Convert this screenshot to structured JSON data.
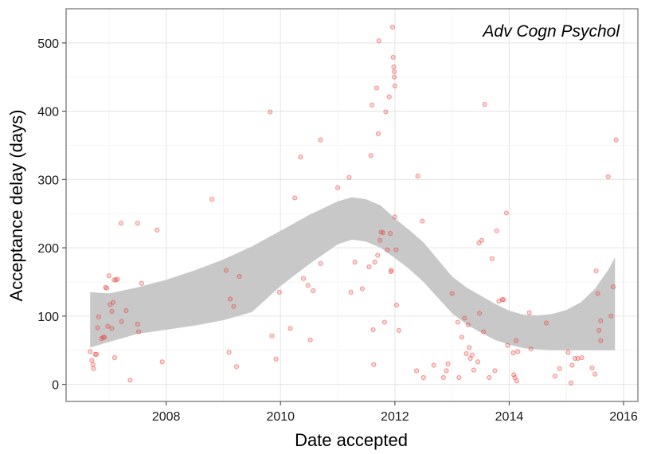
{
  "chart_data": {
    "type": "scatter",
    "title": "",
    "annotation": "Adv Cogn Psychol",
    "xlabel": "Date accepted",
    "ylabel": "Acceptance delay (days)",
    "xlim": [
      2006.25,
      2016.25
    ],
    "ylim": [
      -25,
      550
    ],
    "x_ticks": [
      2008,
      2010,
      2012,
      2014,
      2016
    ],
    "y_ticks": [
      0,
      100,
      200,
      300,
      400,
      500
    ],
    "colors": {
      "point": "#e8413a",
      "band": "#c8c8c8",
      "grid_major": "#e8e8e8",
      "grid_minor": "#f4f4f4",
      "frame": "#8a8a8a"
    },
    "points": [
      [
        2006.67,
        48
      ],
      [
        2006.7,
        35
      ],
      [
        2006.72,
        29
      ],
      [
        2006.73,
        23
      ],
      [
        2006.76,
        44
      ],
      [
        2006.78,
        44
      ],
      [
        2006.8,
        83
      ],
      [
        2006.82,
        99
      ],
      [
        2006.87,
        67
      ],
      [
        2006.9,
        69
      ],
      [
        2006.92,
        69
      ],
      [
        2006.94,
        142
      ],
      [
        2006.96,
        141
      ],
      [
        2006.98,
        85
      ],
      [
        2007.0,
        159
      ],
      [
        2007.02,
        117
      ],
      [
        2007.05,
        107
      ],
      [
        2007.05,
        82
      ],
      [
        2007.07,
        120
      ],
      [
        2007.09,
        153
      ],
      [
        2007.12,
        153
      ],
      [
        2007.1,
        39
      ],
      [
        2007.15,
        154
      ],
      [
        2007.21,
        236
      ],
      [
        2007.22,
        92
      ],
      [
        2007.3,
        108
      ],
      [
        2007.37,
        6
      ],
      [
        2007.5,
        236
      ],
      [
        2007.5,
        88
      ],
      [
        2007.52,
        77
      ],
      [
        2007.57,
        148
      ],
      [
        2007.84,
        226
      ],
      [
        2007.93,
        33
      ],
      [
        2008.8,
        271
      ],
      [
        2009.05,
        167
      ],
      [
        2009.1,
        47
      ],
      [
        2009.12,
        125
      ],
      [
        2009.18,
        114
      ],
      [
        2009.23,
        26
      ],
      [
        2009.28,
        158
      ],
      [
        2009.82,
        399
      ],
      [
        2009.85,
        71
      ],
      [
        2009.92,
        37
      ],
      [
        2009.98,
        135
      ],
      [
        2010.17,
        82
      ],
      [
        2010.25,
        273
      ],
      [
        2010.35,
        333
      ],
      [
        2010.4,
        155
      ],
      [
        2010.48,
        145
      ],
      [
        2010.52,
        65
      ],
      [
        2010.57,
        137
      ],
      [
        2010.7,
        177
      ],
      [
        2010.7,
        358
      ],
      [
        2011.0,
        288
      ],
      [
        2011.2,
        303
      ],
      [
        2011.23,
        135
      ],
      [
        2011.3,
        179
      ],
      [
        2011.43,
        140
      ],
      [
        2011.55,
        172
      ],
      [
        2011.58,
        335
      ],
      [
        2011.6,
        409
      ],
      [
        2011.62,
        80
      ],
      [
        2011.63,
        29
      ],
      [
        2011.65,
        179
      ],
      [
        2011.68,
        434
      ],
      [
        2011.7,
        189
      ],
      [
        2011.71,
        367
      ],
      [
        2011.72,
        503
      ],
      [
        2011.74,
        211
      ],
      [
        2011.76,
        223
      ],
      [
        2011.79,
        222
      ],
      [
        2011.82,
        91
      ],
      [
        2011.84,
        399
      ],
      [
        2011.87,
        197
      ],
      [
        2011.9,
        421
      ],
      [
        2011.92,
        221
      ],
      [
        2011.93,
        165
      ],
      [
        2011.94,
        167
      ],
      [
        2011.96,
        523
      ],
      [
        2011.97,
        479
      ],
      [
        2011.98,
        465
      ],
      [
        2011.99,
        458
      ],
      [
        2011.99,
        450
      ],
      [
        2012.0,
        437
      ],
      [
        2012.0,
        245
      ],
      [
        2012.02,
        197
      ],
      [
        2012.03,
        116
      ],
      [
        2012.07,
        79
      ],
      [
        2012.38,
        20
      ],
      [
        2012.4,
        305
      ],
      [
        2012.48,
        239
      ],
      [
        2012.5,
        10
      ],
      [
        2012.68,
        28
      ],
      [
        2012.85,
        10
      ],
      [
        2012.9,
        20
      ],
      [
        2012.93,
        30
      ],
      [
        2013.0,
        133
      ],
      [
        2013.1,
        91
      ],
      [
        2013.12,
        10
      ],
      [
        2013.17,
        69
      ],
      [
        2013.22,
        97
      ],
      [
        2013.25,
        45
      ],
      [
        2013.28,
        87
      ],
      [
        2013.3,
        54
      ],
      [
        2013.32,
        38
      ],
      [
        2013.35,
        43
      ],
      [
        2013.38,
        21
      ],
      [
        2013.45,
        33
      ],
      [
        2013.47,
        207
      ],
      [
        2013.48,
        104
      ],
      [
        2013.52,
        211
      ],
      [
        2013.55,
        77
      ],
      [
        2013.57,
        410
      ],
      [
        2013.65,
        10
      ],
      [
        2013.7,
        184
      ],
      [
        2013.75,
        20
      ],
      [
        2013.78,
        225
      ],
      [
        2013.82,
        122
      ],
      [
        2013.88,
        124
      ],
      [
        2013.9,
        124
      ],
      [
        2013.95,
        251
      ],
      [
        2013.97,
        57
      ],
      [
        2014.07,
        46
      ],
      [
        2014.08,
        14
      ],
      [
        2014.1,
        10
      ],
      [
        2014.12,
        64
      ],
      [
        2014.13,
        5
      ],
      [
        2014.15,
        48
      ],
      [
        2014.35,
        105
      ],
      [
        2014.38,
        52
      ],
      [
        2014.65,
        90
      ],
      [
        2014.8,
        12
      ],
      [
        2014.88,
        23
      ],
      [
        2015.03,
        47
      ],
      [
        2015.08,
        2
      ],
      [
        2015.1,
        28
      ],
      [
        2015.15,
        38
      ],
      [
        2015.2,
        38
      ],
      [
        2015.27,
        39
      ],
      [
        2015.45,
        24
      ],
      [
        2015.5,
        15
      ],
      [
        2015.52,
        166
      ],
      [
        2015.55,
        133
      ],
      [
        2015.57,
        79
      ],
      [
        2015.6,
        64
      ],
      [
        2015.6,
        93
      ],
      [
        2015.73,
        304
      ],
      [
        2015.78,
        100
      ],
      [
        2015.82,
        143
      ],
      [
        2015.87,
        358
      ]
    ],
    "smooth_band": {
      "x": [
        2006.67,
        2007,
        2007.5,
        2008,
        2008.5,
        2009,
        2009.5,
        2010,
        2010.5,
        2011,
        2011.25,
        2011.5,
        2011.75,
        2012,
        2012.25,
        2012.5,
        2012.75,
        2013,
        2013.25,
        2013.5,
        2013.75,
        2014,
        2014.25,
        2014.5,
        2014.75,
        2015,
        2015.25,
        2015.5,
        2015.75,
        2015.85
      ],
      "upper": [
        135,
        133,
        142,
        153,
        167,
        183,
        202,
        225,
        248,
        268,
        274,
        271,
        262,
        243,
        226,
        208,
        183,
        158,
        142,
        130,
        118,
        108,
        102,
        101,
        103,
        109,
        120,
        140,
        170,
        186
      ],
      "lower": [
        54,
        62,
        74,
        80,
        86,
        94,
        106,
        144,
        176,
        205,
        212,
        209,
        200,
        185,
        169,
        150,
        127,
        104,
        88,
        76,
        65,
        58,
        53,
        51,
        50,
        50,
        50,
        50,
        50,
        50
      ]
    }
  }
}
